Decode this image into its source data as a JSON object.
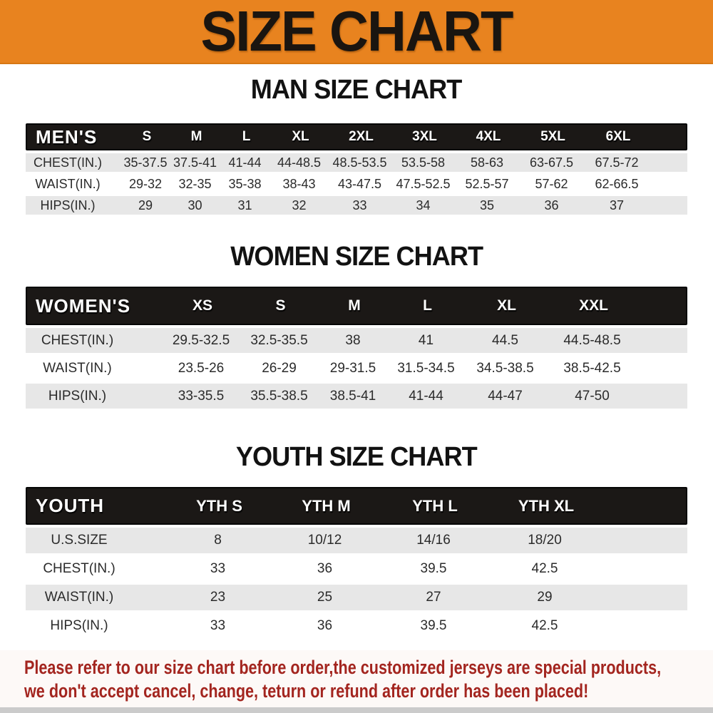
{
  "banner": {
    "title": "SIZE CHART"
  },
  "chart_data": [
    {
      "type": "table",
      "title": "MAN SIZE CHART",
      "corner_label": "MEN'S",
      "columns": [
        "S",
        "M",
        "L",
        "XL",
        "2XL",
        "3XL",
        "4XL",
        "5XL",
        "6XL"
      ],
      "rows": [
        {
          "label": "CHEST(IN.)",
          "values": [
            "35-37.5",
            "37.5-41",
            "41-44",
            "44-48.5",
            "48.5-53.5",
            "53.5-58",
            "58-63",
            "63-67.5",
            "67.5-72"
          ]
        },
        {
          "label": "WAIST(IN.)",
          "values": [
            "29-32",
            "32-35",
            "35-38",
            "38-43",
            "43-47.5",
            "47.5-52.5",
            "52.5-57",
            "57-62",
            "62-66.5"
          ]
        },
        {
          "label": "HIPS(IN.)",
          "values": [
            "29",
            "30",
            "31",
            "32",
            "33",
            "34",
            "35",
            "36",
            "37"
          ]
        }
      ]
    },
    {
      "type": "table",
      "title": "WOMEN SIZE CHART",
      "corner_label": "WOMEN'S",
      "columns": [
        "XS",
        "S",
        "M",
        "L",
        "XL",
        "XXL"
      ],
      "rows": [
        {
          "label": "CHEST(IN.)",
          "values": [
            "29.5-32.5",
            "32.5-35.5",
            "38",
            "41",
            "44.5",
            "44.5-48.5"
          ]
        },
        {
          "label": "WAIST(IN.)",
          "values": [
            "23.5-26",
            "26-29",
            "29-31.5",
            "31.5-34.5",
            "34.5-38.5",
            "38.5-42.5"
          ]
        },
        {
          "label": "HIPS(IN.)",
          "values": [
            "33-35.5",
            "35.5-38.5",
            "38.5-41",
            "41-44",
            "44-47",
            "47-50"
          ]
        }
      ]
    },
    {
      "type": "table",
      "title": "YOUTH SIZE CHART",
      "corner_label": "YOUTH",
      "columns": [
        "YTH S",
        "YTH M",
        "YTH L",
        "YTH XL"
      ],
      "rows": [
        {
          "label": "U.S.SIZE",
          "values": [
            "8",
            "10/12",
            "14/16",
            "18/20"
          ]
        },
        {
          "label": "CHEST(IN.)",
          "values": [
            "33",
            "36",
            "39.5",
            "42.5"
          ]
        },
        {
          "label": "WAIST(IN.)",
          "values": [
            "23",
            "25",
            "27",
            "29"
          ]
        },
        {
          "label": "HIPS(IN.)",
          "values": [
            "33",
            "36",
            "39.5",
            "42.5"
          ]
        }
      ]
    }
  ],
  "disclaimer": {
    "line1": "Please refer to our size chart before order,the customized jerseys are special products,",
    "line2": "we don't accept cancel, change, teturn or refund after order has been placed!"
  },
  "colors": {
    "banner_bg": "#E8831F",
    "banner_text": "#1A1510",
    "header_bar_bg": "#1B1816",
    "header_bar_text": "#FFFFFF",
    "row_stripe": "#E7E7E7",
    "table_text": "#2B2B2B",
    "disclaimer_text": "#A3251F"
  }
}
